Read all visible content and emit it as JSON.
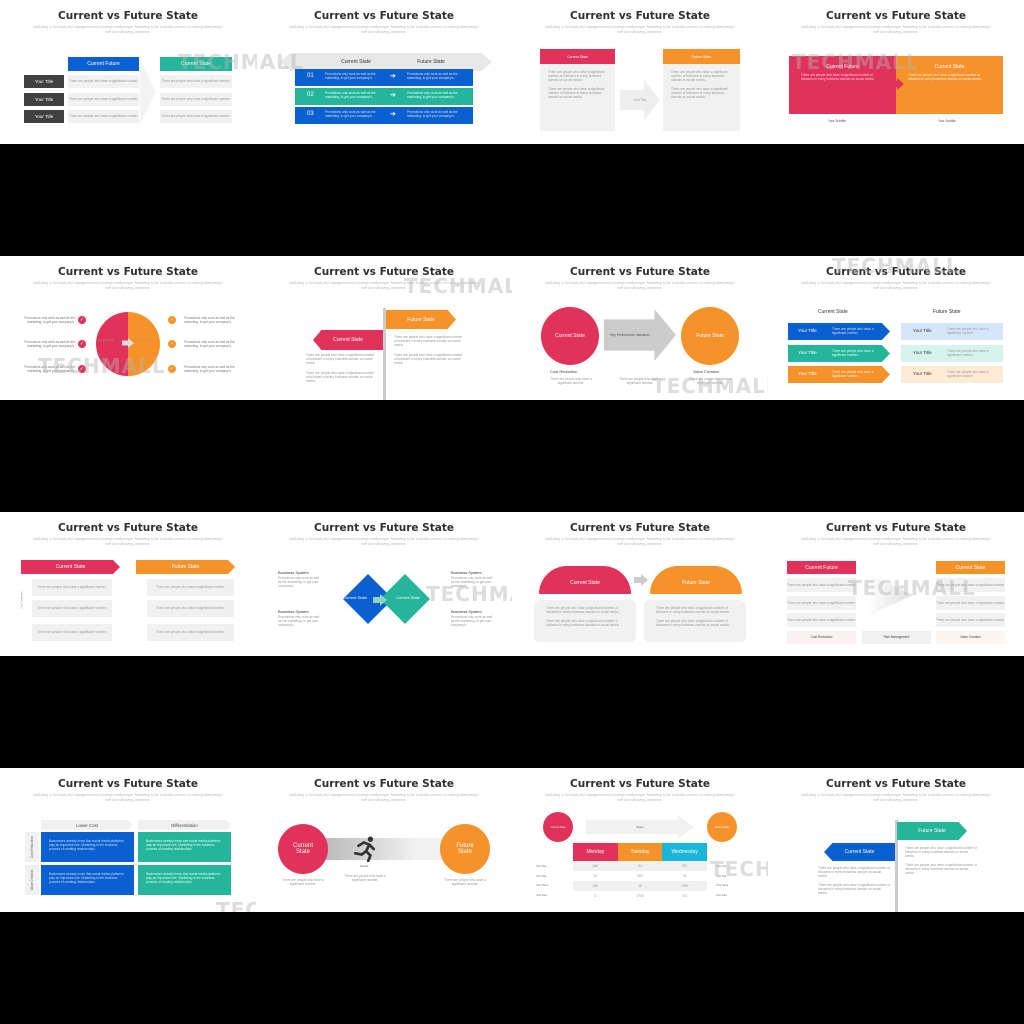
{
  "title": "Current vs Future State",
  "subtitle": "Marketing is the study and management of exchange relationships. Marketing is the business process of creating relationships with and satisfying customers.",
  "watermark": "TECHMALL",
  "body": "There are people who have a significant number.",
  "bullet": "There are people who have a significant number of followers in every business domain on social media.",
  "promo": "Promotions only work as well as the marketing, to get your company's.",
  "biz": "Businesses already know that social media platforms play an important role. Marketing is the business process of creating relationships.",
  "colors": {
    "blue": "#0a5fd1",
    "teal": "#25b59a",
    "red": "#e0325a",
    "orange": "#f5932a",
    "dark": "#404040",
    "cyan": "#1ab6d9"
  },
  "s1": {
    "col1": "Current Future",
    "col2": "Current State",
    "rows": [
      "Your Title",
      "Your Title",
      "Your Title"
    ]
  },
  "s2": {
    "col1": "Current State",
    "col2": "Future State",
    "rows": [
      "01",
      "02",
      "03"
    ]
  },
  "s3": {
    "left": "Current State",
    "right": "Future State",
    "mid": "Your Title"
  },
  "s4": {
    "left": "Current Future",
    "right": "Current State",
    "sub1": "Your Subtitle",
    "sub2": "Your Subtitle"
  },
  "s5": {
    "left": "Current Future",
    "right": "Current State"
  },
  "s6": {
    "future": "Future State",
    "current": "Current State"
  },
  "s7": {
    "current": "Current State",
    "future": "Future State",
    "arrow": "Key Performance Indicators",
    "lab1": "Cost Reduction",
    "lab2": "Value Creation"
  },
  "s8": {
    "h1": "Current State",
    "h2": "Future State",
    "item": "Your Title"
  },
  "s9": {
    "current": "Current State",
    "future": "Future State",
    "side": "Cost Reduction"
  },
  "s10": {
    "label": "Business System",
    "current": "Current State",
    "future": "Current State"
  },
  "s11": {
    "current": "Current State",
    "future": "Future State"
  },
  "s12": {
    "left": "Current Future",
    "right": "Current State",
    "b1": "Cost Reduction",
    "b2": "Risk Management",
    "b3": "Value Creation"
  },
  "s13": {
    "h1": "Lower Cost",
    "h2": "Differentiation",
    "r1": "Cost Reduction",
    "r2": "Value Creation"
  },
  "s14": {
    "current": "Current State",
    "future": "Future State",
    "runner": "Current",
    "icon": "runner-icon"
  },
  "s15": {
    "current": "Current State",
    "future": "Future State",
    "arrow": "Steps",
    "headers": [
      "Monday",
      "Tuesday",
      "Wednesday"
    ],
    "rows": [
      [
        "456",
        "34",
        "570"
      ],
      [
        "1X",
        "490",
        "26"
      ],
      [
        "256",
        "18",
        "1950"
      ],
      [
        "4",
        "2740",
        "470"
      ]
    ],
    "left": [
      "Your One",
      "Your Two",
      "Your Three",
      "Your Four"
    ],
    "right": [
      "Your One",
      "Your Two",
      "Your Three",
      "Your Four"
    ]
  },
  "s16": {
    "future": "Future State",
    "current": "Current State"
  }
}
